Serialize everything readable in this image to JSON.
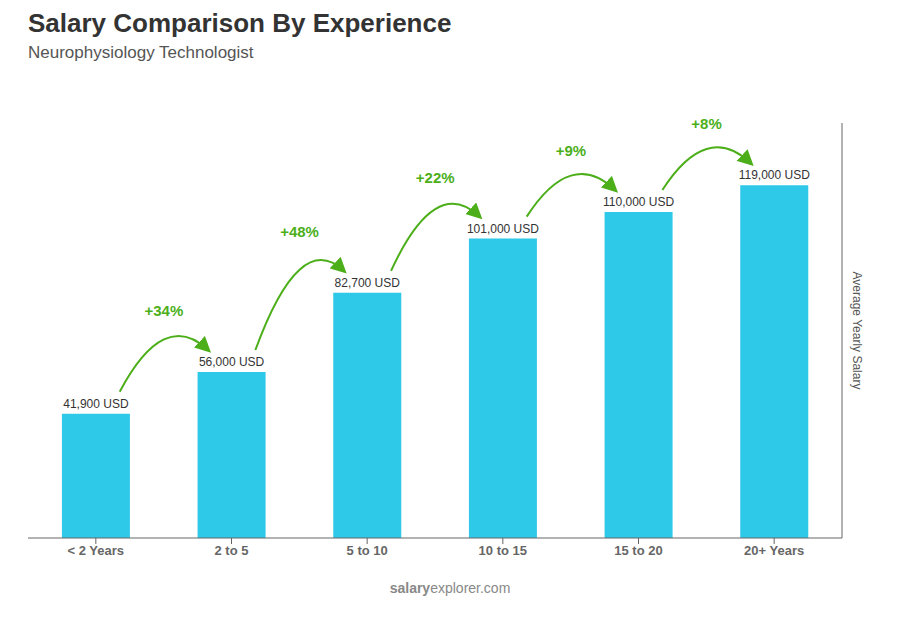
{
  "chart_data": {
    "type": "bar",
    "title": "Salary Comparison By Experience",
    "subtitle": "Neurophysiology Technologist",
    "categories": [
      "< 2 Years",
      "2 to 5",
      "5 to 10",
      "10 to 15",
      "15 to 20",
      "20+ Years"
    ],
    "values": [
      41900,
      56000,
      82700,
      101000,
      110000,
      119000
    ],
    "value_labels": [
      "41,900 USD",
      "56,000 USD",
      "82,700 USD",
      "101,000 USD",
      "110,000 USD",
      "119,000 USD"
    ],
    "data_labels": true,
    "annotations": [
      "+34%",
      "+48%",
      "+22%",
      "+9%",
      "+8%"
    ],
    "source": [
      "salary",
      "explorer.com"
    ],
    "ylabel": "Average Yearly Salary",
    "color": "#2ec8e8",
    "ylim": [
      0,
      140000
    ],
    "tick_labels": "x",
    "grid": false
  }
}
